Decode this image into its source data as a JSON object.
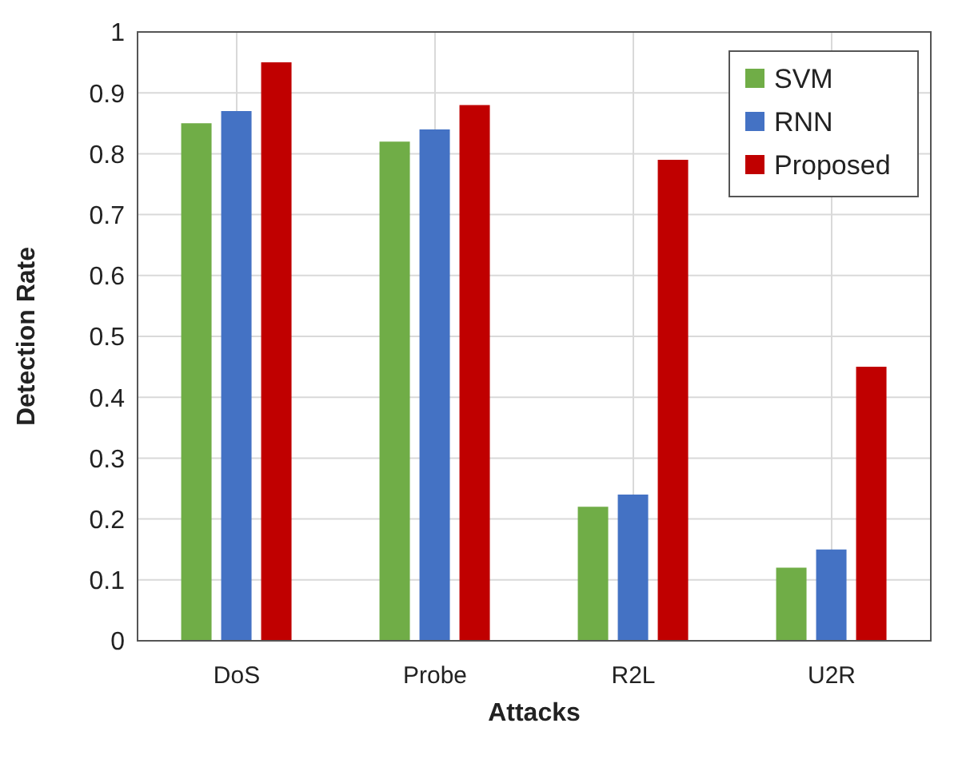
{
  "chart_data": {
    "type": "bar",
    "xlabel": "Attacks",
    "ylabel": "Detection Rate",
    "categories": [
      "DoS",
      "Probe",
      "R2L",
      "U2R"
    ],
    "series": [
      {
        "name": "SVM",
        "color": "#70ad47",
        "values": [
          0.85,
          0.82,
          0.22,
          0.12
        ]
      },
      {
        "name": "RNN",
        "color": "#4472c4",
        "values": [
          0.87,
          0.84,
          0.24,
          0.15
        ]
      },
      {
        "name": "Proposed",
        "color": "#c00000",
        "values": [
          0.95,
          0.88,
          0.79,
          0.45
        ]
      }
    ],
    "ylim": [
      0,
      1
    ],
    "yticks": [
      0,
      0.1,
      0.2,
      0.3,
      0.4,
      0.5,
      0.6,
      0.7,
      0.8,
      0.9,
      1
    ],
    "grid": true,
    "legend": "top right"
  }
}
